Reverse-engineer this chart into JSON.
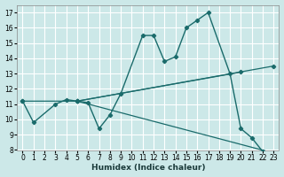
{
  "xlabel": "Humidex (Indice chaleur)",
  "bg_color": "#cce8e8",
  "grid_color": "#ffffff",
  "line_color": "#1a6b6b",
  "xlim": [
    -0.5,
    23.5
  ],
  "ylim": [
    8,
    17.5
  ],
  "xticks": [
    0,
    1,
    2,
    3,
    4,
    5,
    6,
    7,
    8,
    9,
    10,
    11,
    12,
    13,
    14,
    15,
    16,
    17,
    18,
    19,
    20,
    21,
    22,
    23
  ],
  "yticks": [
    8,
    9,
    10,
    11,
    12,
    13,
    14,
    15,
    16,
    17
  ],
  "lines": [
    {
      "x": [
        0,
        1,
        3,
        4,
        5,
        6,
        7,
        8,
        9,
        11,
        12,
        13,
        14,
        15,
        16,
        17,
        19,
        20,
        21,
        22,
        23
      ],
      "y": [
        11.2,
        9.8,
        11.0,
        11.3,
        11.2,
        11.1,
        9.4,
        10.3,
        11.7,
        15.5,
        15.5,
        13.8,
        14.1,
        16.0,
        16.5,
        17.0,
        13.0,
        9.4,
        8.8,
        7.9,
        7.8
      ]
    },
    {
      "x": [
        5,
        23
      ],
      "y": [
        11.2,
        13.5
      ]
    },
    {
      "x": [
        5,
        20
      ],
      "y": [
        11.2,
        13.1
      ]
    },
    {
      "x": [
        0,
        5,
        23
      ],
      "y": [
        11.2,
        11.2,
        7.8
      ]
    }
  ]
}
